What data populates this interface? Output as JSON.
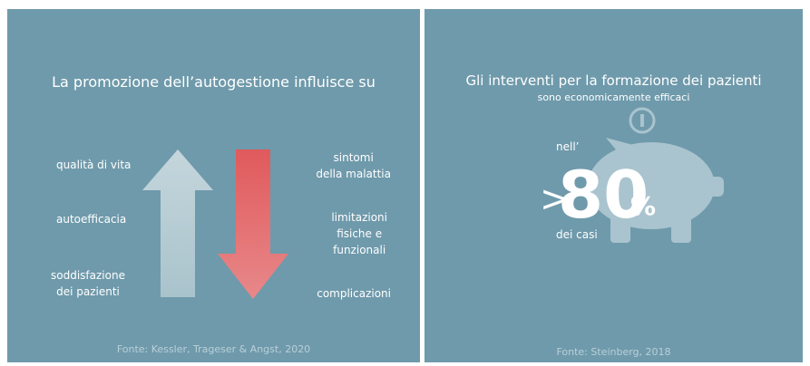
{
  "left_panel": {
    "title": "La promozione dell’autogestione influisce su",
    "increases": [
      "qualità di vita",
      "autoefficacia",
      "soddisfazione\ndei pazienti"
    ],
    "decreases": [
      "sintomi\ndella malattia",
      "limitazioni\nfisiche e\nfunzionali",
      "complicazioni"
    ],
    "source": "Fonte: Kessler, Trageser & Angst, 2020"
  },
  "right_panel": {
    "title": "Gli interventi per la formazione dei pazienti",
    "subtitle": "sono economicamente efficaci",
    "prefix": "nell’",
    "comparator": ">",
    "figure": "80",
    "unit": "%",
    "suffix": "dei casi",
    "source": "Fonte: Steinberg, 2018"
  }
}
